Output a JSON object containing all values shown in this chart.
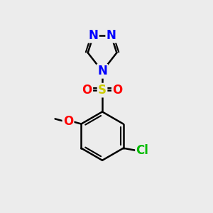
{
  "background_color": "#ececec",
  "atom_colors": {
    "N": "#0000ff",
    "O": "#ff0000",
    "S": "#cccc00",
    "Cl": "#00bb00",
    "C": "#000000"
  },
  "bond_color": "#000000",
  "bond_width": 1.8,
  "font_size": 12
}
